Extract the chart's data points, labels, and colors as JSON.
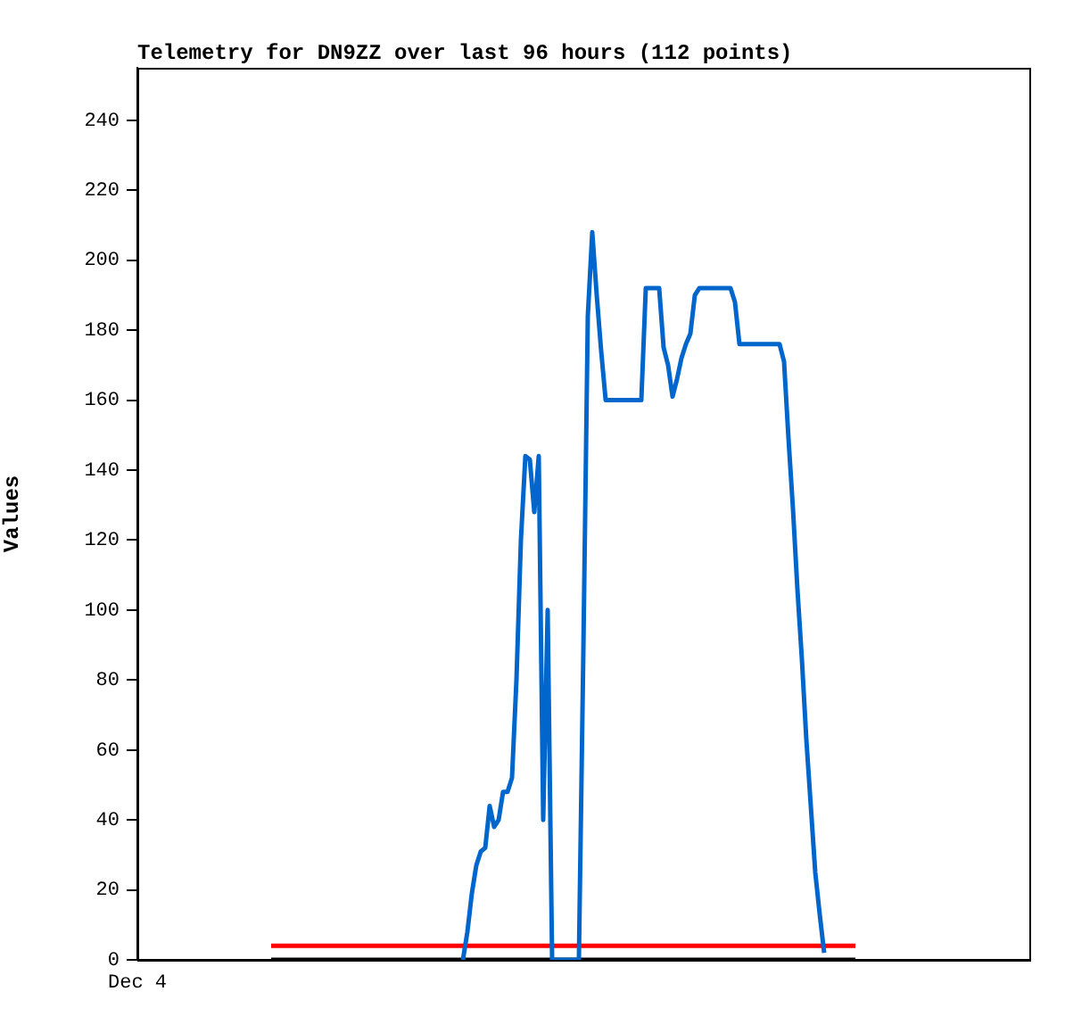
{
  "chart_data": {
    "type": "line",
    "title": "Telemetry for DN9ZZ over last 96 hours (112 points)",
    "ylabel": "Values",
    "ylim": [
      0,
      255
    ],
    "yticks": [
      0,
      20,
      40,
      60,
      80,
      100,
      120,
      140,
      160,
      180,
      200,
      220,
      240
    ],
    "grid": false,
    "legend": false,
    "marker": "none",
    "line_style": "solid",
    "categories": [
      "Dec 4",
      null,
      null,
      null,
      null,
      null,
      null,
      null,
      null,
      null,
      null,
      null,
      null,
      null,
      null,
      null,
      null,
      null,
      null,
      null,
      null,
      null,
      null,
      null,
      null,
      null,
      null,
      null,
      null,
      null,
      null,
      null,
      null,
      null,
      null,
      null,
      null,
      null,
      null,
      null,
      null,
      null,
      null,
      null,
      null,
      null,
      null,
      null,
      null,
      null,
      null,
      null,
      null,
      null,
      null,
      null,
      null,
      null,
      null,
      null,
      null,
      null,
      null,
      null,
      null,
      null,
      null,
      null,
      null,
      null,
      null,
      null,
      null,
      null,
      null,
      null,
      null,
      null,
      null,
      null,
      null,
      null,
      null,
      null,
      null,
      null,
      null,
      null,
      null,
      null,
      null,
      null,
      null,
      null,
      null,
      null,
      null,
      null,
      null,
      null,
      null,
      null,
      null,
      null,
      null,
      null,
      null,
      null,
      null,
      null,
      null,
      null,
      null,
      null,
      null,
      null,
      null,
      null,
      null,
      null,
      null,
      null,
      null,
      null,
      null,
      null,
      null,
      null,
      null,
      null,
      null,
      null,
      null,
      null,
      null,
      null,
      null,
      null,
      null,
      null,
      null,
      null,
      null,
      null,
      null,
      null,
      null,
      null,
      null,
      null,
      null,
      null,
      null,
      null,
      null,
      null,
      null,
      null,
      null,
      null,
      null,
      null,
      null,
      null,
      null,
      null,
      null,
      null,
      null,
      null,
      null,
      null,
      null,
      null,
      null,
      null,
      null,
      null,
      null,
      null,
      null,
      null,
      null,
      null,
      null,
      null,
      null,
      null,
      null,
      null,
      null,
      null,
      null,
      null,
      null,
      null,
      null,
      null,
      null,
      null,
      null
    ],
    "series": [
      {
        "color": "#0066cc",
        "values": [
          null,
          null,
          null,
          null,
          null,
          null,
          null,
          null,
          null,
          null,
          null,
          null,
          null,
          null,
          null,
          null,
          null,
          null,
          null,
          null,
          null,
          null,
          null,
          null,
          null,
          null,
          null,
          null,
          null,
          null,
          null,
          null,
          null,
          null,
          null,
          null,
          null,
          null,
          null,
          null,
          null,
          null,
          null,
          null,
          null,
          null,
          null,
          null,
          null,
          null,
          null,
          null,
          null,
          null,
          null,
          null,
          null,
          null,
          null,
          null,
          null,
          null,
          null,
          null,
          null,
          null,
          null,
          null,
          null,
          null,
          null,
          null,
          null,
          0,
          8,
          19,
          27,
          31,
          32,
          44,
          38,
          40,
          48,
          48,
          52,
          80,
          120,
          144,
          143,
          128,
          144,
          40,
          100,
          0,
          0,
          0,
          0,
          0,
          0,
          0,
          88,
          184,
          208,
          190,
          174,
          160,
          160,
          160,
          160,
          160,
          160,
          160,
          160,
          160,
          192,
          192,
          192,
          192,
          175,
          170,
          161,
          166,
          172,
          176,
          179,
          190,
          192,
          192,
          192,
          192,
          192,
          192,
          192,
          192,
          188,
          176,
          176,
          176,
          176,
          176,
          176,
          176,
          176,
          176,
          176,
          171,
          149,
          129,
          106,
          86,
          63,
          44,
          25,
          13,
          2,
          null,
          null,
          null,
          null,
          null,
          null,
          null,
          null,
          null,
          null,
          null,
          null,
          null,
          null,
          null,
          null,
          null,
          null,
          null,
          null,
          null,
          null,
          null,
          null,
          null,
          null,
          null,
          null,
          null,
          null,
          null,
          null,
          null,
          null,
          null,
          null,
          null,
          null,
          null,
          null,
          null,
          null,
          null,
          null,
          null,
          null
        ]
      },
      {
        "color": "#ff0000",
        "values": [
          null,
          null,
          null,
          null,
          null,
          null,
          null,
          null,
          null,
          null,
          null,
          null,
          null,
          null,
          null,
          null,
          null,
          null,
          null,
          null,
          null,
          null,
          null,
          null,
          null,
          null,
          null,
          null,
          null,
          null,
          4,
          4,
          4,
          4,
          4,
          4,
          4,
          4,
          4,
          4,
          4,
          4,
          4,
          4,
          4,
          4,
          4,
          4,
          4,
          4,
          4,
          4,
          4,
          4,
          4,
          4,
          4,
          4,
          4,
          4,
          4,
          4,
          4,
          4,
          4,
          4,
          4,
          4,
          4,
          4,
          4,
          4,
          4,
          4,
          4,
          4,
          4,
          4,
          4,
          4,
          4,
          4,
          4,
          4,
          4,
          4,
          4,
          4,
          4,
          4,
          4,
          4,
          4,
          4,
          4,
          4,
          4,
          4,
          4,
          4,
          4,
          4,
          4,
          4,
          4,
          4,
          4,
          4,
          4,
          4,
          4,
          4,
          4,
          4,
          4,
          4,
          4,
          4,
          4,
          4,
          4,
          4,
          4,
          4,
          4,
          4,
          4,
          4,
          4,
          4,
          4,
          4,
          4,
          4,
          4,
          4,
          4,
          4,
          4,
          4,
          4,
          4,
          4,
          4,
          4,
          4,
          4,
          4,
          4,
          4,
          4,
          4,
          4,
          4,
          4,
          4,
          4,
          4,
          4,
          4,
          4,
          4,
          null,
          null,
          null,
          null,
          null,
          null,
          null,
          null,
          null,
          null,
          null,
          null,
          null,
          null,
          null,
          null,
          null,
          null,
          null,
          null,
          null,
          null,
          null,
          null,
          null,
          null,
          null,
          null,
          null,
          null,
          null,
          null,
          null,
          null,
          null,
          null,
          null,
          null,
          null
        ]
      },
      {
        "color": "#000000",
        "values": [
          null,
          null,
          null,
          null,
          null,
          null,
          null,
          null,
          null,
          null,
          null,
          null,
          null,
          null,
          null,
          null,
          null,
          null,
          null,
          null,
          null,
          null,
          null,
          null,
          null,
          null,
          null,
          null,
          null,
          null,
          0,
          0,
          0,
          0,
          0,
          0,
          0,
          0,
          0,
          0,
          0,
          0,
          0,
          0,
          0,
          0,
          0,
          0,
          0,
          0,
          0,
          0,
          0,
          0,
          0,
          0,
          0,
          0,
          0,
          0,
          0,
          0,
          0,
          0,
          0,
          0,
          0,
          0,
          0,
          0,
          0,
          0,
          0,
          0,
          0,
          0,
          0,
          0,
          0,
          0,
          0,
          0,
          0,
          0,
          0,
          0,
          0,
          0,
          0,
          0,
          0,
          0,
          0,
          0,
          0,
          0,
          0,
          0,
          0,
          0,
          0,
          0,
          0,
          0,
          0,
          0,
          0,
          0,
          0,
          0,
          0,
          0,
          0,
          0,
          0,
          0,
          0,
          0,
          0,
          0,
          0,
          0,
          0,
          0,
          0,
          0,
          0,
          0,
          0,
          0,
          0,
          0,
          0,
          0,
          0,
          0,
          0,
          0,
          0,
          0,
          0,
          0,
          0,
          0,
          0,
          0,
          0,
          0,
          0,
          0,
          0,
          0,
          0,
          0,
          0,
          0,
          0,
          0,
          0,
          0,
          0,
          0,
          null,
          null,
          null,
          null,
          null,
          null,
          null,
          null,
          null,
          null,
          null,
          null,
          null,
          null,
          null,
          null,
          null,
          null,
          null,
          null,
          null,
          null,
          null,
          null,
          null,
          null,
          null,
          null,
          null,
          null,
          null,
          null,
          null,
          null,
          null,
          null,
          null,
          null,
          null
        ]
      }
    ]
  }
}
